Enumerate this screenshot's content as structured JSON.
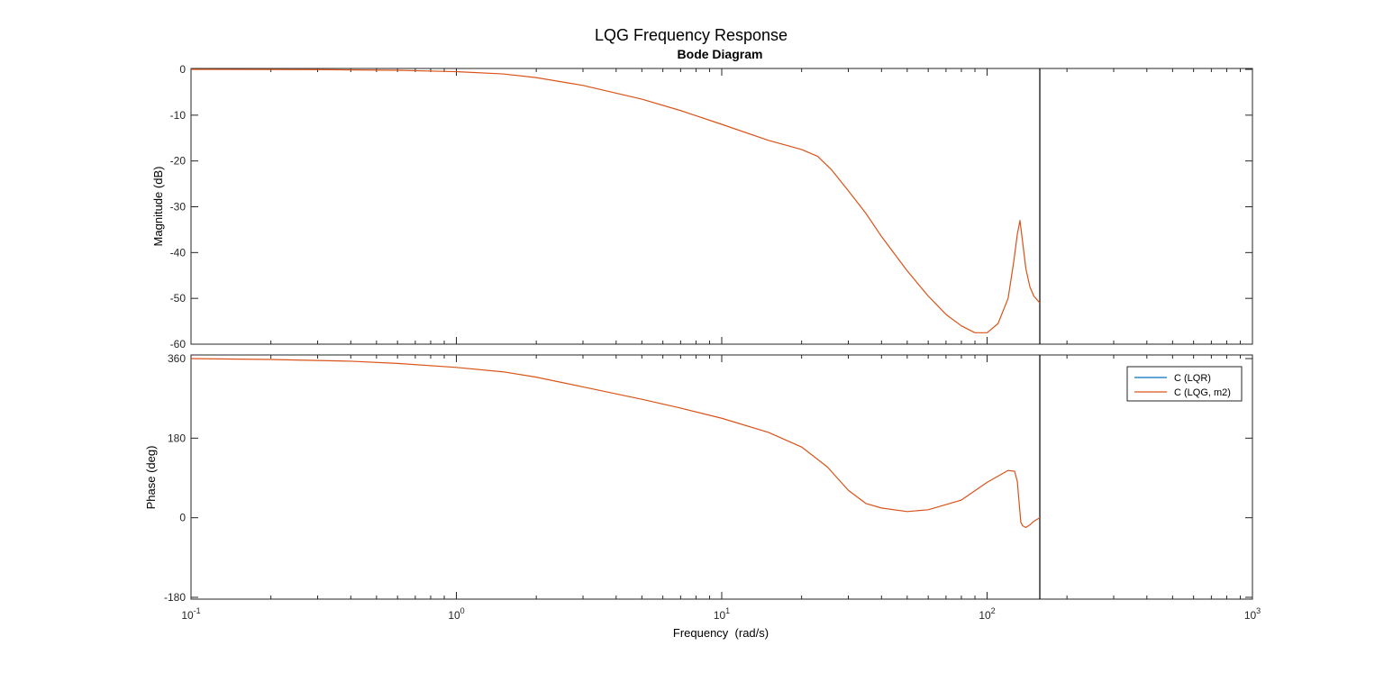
{
  "figure": {
    "title": "LQG Frequency Response",
    "subtitle": "Bode Diagram"
  },
  "chart_data": [
    {
      "type": "line",
      "panel": "magnitude",
      "xscale": "log",
      "xlim": [
        0.1,
        1000
      ],
      "ylim": [
        -60,
        0
      ],
      "ylabel": "Magnitude (dB)",
      "yticks": [
        "0",
        "-10",
        "-20",
        "-30",
        "-40",
        "-50",
        "-60"
      ],
      "ytick_values": [
        0,
        -10,
        -20,
        -30,
        -40,
        -50,
        -60
      ],
      "grid": false,
      "vertical_marker_x": 158,
      "series": [
        {
          "name": "C (LQG, m2)",
          "color": "#D95319",
          "x": [
            0.1,
            0.3,
            0.6,
            1.0,
            1.5,
            2.0,
            3.0,
            5.0,
            7.0,
            10,
            15,
            20,
            23,
            26,
            30,
            35,
            40,
            50,
            60,
            70,
            80,
            90,
            100,
            110,
            120,
            126,
            130,
            133,
            135,
            140,
            145,
            150,
            158
          ],
          "y": [
            0,
            -0.05,
            -0.2,
            -0.5,
            -1.0,
            -1.8,
            -3.5,
            -6.5,
            -9.0,
            -12.0,
            -15.5,
            -17.5,
            -19.0,
            -22.0,
            -26.5,
            -31.5,
            -36.5,
            -44.0,
            -49.5,
            -53.5,
            -56.0,
            -57.5,
            -57.5,
            -55.5,
            -50.0,
            -42.0,
            -36.0,
            -33.0,
            -36.0,
            -43.5,
            -47.5,
            -49.5,
            -51.0
          ]
        },
        {
          "name": "C (LQR)",
          "color": "#0072BD",
          "x": [],
          "y": []
        }
      ]
    },
    {
      "type": "line",
      "panel": "phase",
      "xscale": "log",
      "xlim": [
        0.1,
        1000
      ],
      "ylim": [
        -180,
        360
      ],
      "ylabel": "Phase (deg)",
      "xlabel": "Frequency  (rad/s)",
      "yticks": [
        "360",
        "180",
        "0",
        "-180"
      ],
      "ytick_values": [
        360,
        180,
        0,
        -180
      ],
      "xticks": [
        {
          "base": "10",
          "exp": "-1",
          "value": 0.1
        },
        {
          "base": "10",
          "exp": "0",
          "value": 1
        },
        {
          "base": "10",
          "exp": "1",
          "value": 10
        },
        {
          "base": "10",
          "exp": "2",
          "value": 100
        },
        {
          "base": "10",
          "exp": "3",
          "value": 1000
        }
      ],
      "grid": false,
      "vertical_marker_x": 158,
      "series": [
        {
          "name": "C (LQG, m2)",
          "color": "#D95319",
          "x": [
            0.1,
            0.2,
            0.4,
            0.6,
            1.0,
            1.5,
            2.0,
            3.0,
            5.0,
            7.0,
            10,
            15,
            20,
            25,
            30,
            35,
            40,
            50,
            60,
            80,
            100,
            120,
            127,
            130,
            132,
            134,
            136,
            140,
            145,
            150,
            158
          ],
          "y": [
            360,
            358,
            354,
            349,
            340,
            330,
            318,
            296,
            268,
            248,
            225,
            193,
            160,
            115,
            62,
            32,
            22,
            14,
            18,
            40,
            80,
            107,
            105,
            82,
            35,
            -10,
            -18,
            -22,
            -16,
            -8,
            0
          ]
        },
        {
          "name": "C (LQR)",
          "color": "#0072BD",
          "x": [],
          "y": []
        }
      ],
      "legend": {
        "placement": "top-right",
        "entries": [
          {
            "label": "C (LQR)",
            "color": "#0072BD"
          },
          {
            "label": "C (LQG, m2)",
            "color": "#D95319"
          }
        ]
      }
    }
  ]
}
